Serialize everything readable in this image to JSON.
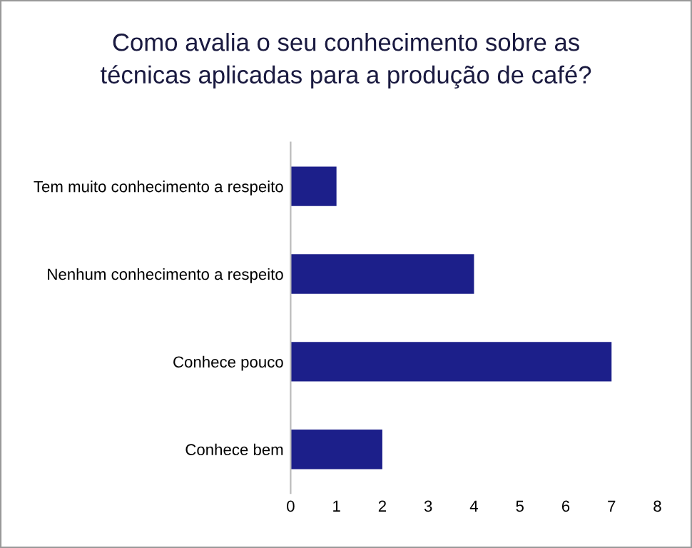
{
  "chart_data": {
    "type": "bar",
    "orientation": "horizontal",
    "title": "Como avalia o seu conhecimento sobre as\ntécnicas aplicadas para a produção de café?",
    "categories": [
      "Tem muito conhecimento a respeito",
      "Nenhum conhecimento a respeito",
      "Conhece pouco",
      "Conhece bem"
    ],
    "values": [
      1,
      4,
      7,
      2
    ],
    "color": "#1c1f8a",
    "xlim": [
      0,
      8
    ],
    "xticks": [
      0,
      1,
      2,
      3,
      4,
      5,
      6,
      7,
      8
    ],
    "grid": false,
    "legend": false
  }
}
